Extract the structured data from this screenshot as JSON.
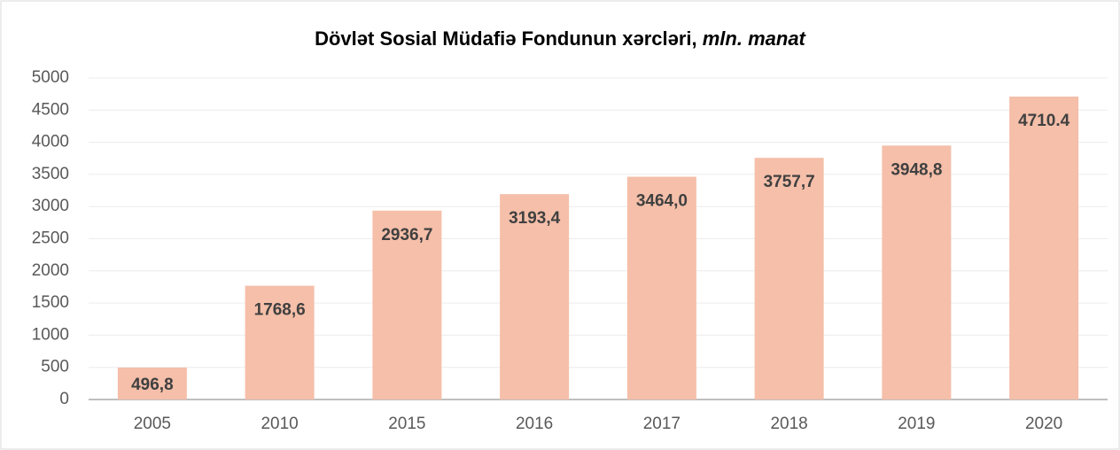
{
  "chart_data": {
    "type": "bar",
    "title": "Dövlət Sosial Müdafiə Fondunun xərcləri,",
    "subtitle": "mln. manat",
    "categories": [
      "2005",
      "2010",
      "2015",
      "2016",
      "2017",
      "2018",
      "2019",
      "2020"
    ],
    "values": [
      496.8,
      1768.6,
      2936.7,
      3193.4,
      3464.0,
      3757.7,
      3948.8,
      4710.4
    ],
    "value_labels": [
      "496,8",
      "1768,6",
      "2936,7",
      "3193,4",
      "3464,0",
      "3757,7",
      "3948,8",
      "4710.4"
    ],
    "color": "#f5bfa9",
    "ylim": [
      0,
      5000
    ],
    "yticks": [
      0,
      500,
      1000,
      1500,
      2000,
      2500,
      3000,
      3500,
      4000,
      4500,
      5000
    ],
    "grid": true
  }
}
